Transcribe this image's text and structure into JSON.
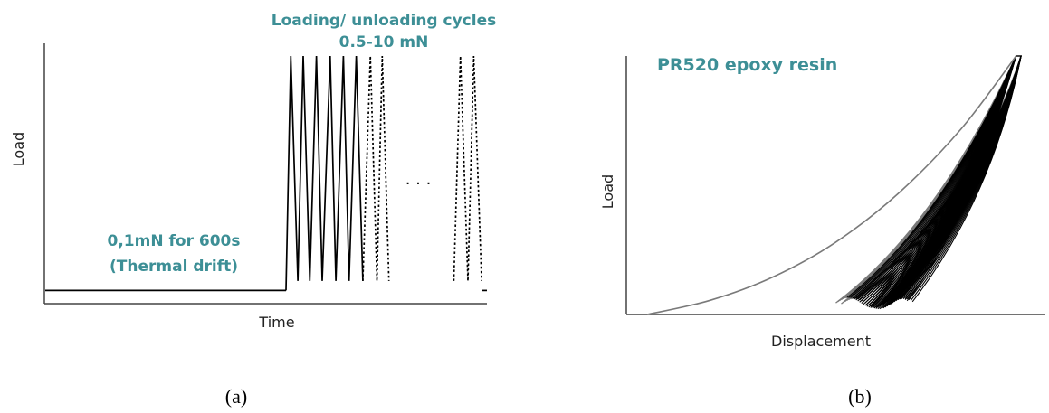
{
  "colors": {
    "annotation": "#3d8f96",
    "curve": "#000000",
    "curve_gray": "#7a7a7a",
    "axis": "#444444"
  },
  "chart_data": [
    {
      "type": "line",
      "panel": "(a)",
      "xlabel": "Time",
      "ylabel": "Load",
      "annotations": {
        "cycles_title": "Loading/ unloading cycles",
        "cycles_range": "0.5-10 mN",
        "hold_value": "0,1mN for 600s",
        "hold_note": "(Thermal drift)",
        "ellipsis": ". . ."
      },
      "xlim": [
        0,
        100
      ],
      "ylim": [
        0,
        10
      ],
      "series": [
        {
          "style": "solid",
          "x": [
            0,
            54.5
          ],
          "y": [
            0.1,
            0.1
          ]
        },
        {
          "style": "solid",
          "x": [
            54.5,
            55.6,
            57.2,
            58.4,
            59.9,
            61.4,
            62.7,
            64.5,
            65.8,
            67.5,
            68.8,
            70.4,
            71.9
          ],
          "y": [
            0.1,
            10,
            0.5,
            10,
            0.5,
            10,
            0.5,
            10,
            0.5,
            10,
            0.5,
            10,
            0.5
          ]
        },
        {
          "style": "dotted",
          "x": [
            71.9,
            73.6,
            75.1,
            76.3,
            77.8
          ],
          "y": [
            0.5,
            10,
            0.5,
            10,
            0.5
          ]
        },
        {
          "style": "dotted",
          "x": [
            92.5,
            94.0,
            95.7,
            97.0,
            98.8
          ],
          "y": [
            0.5,
            10,
            0.5,
            10,
            0.5
          ]
        },
        {
          "style": "solid",
          "x": [
            98.8,
            100
          ],
          "y": [
            0.1,
            0.1
          ]
        }
      ]
    },
    {
      "type": "line",
      "panel": "(b)",
      "title": "PR520 epoxy resin",
      "xlabel": "Displacement",
      "ylabel": "Load",
      "xlim": [
        0,
        100
      ],
      "ylim": [
        0,
        100
      ],
      "loading_curve": {
        "x": [
          5,
          20,
          35,
          50,
          65,
          80,
          93
        ],
        "y": [
          0,
          5.5,
          14.5,
          28,
          47,
          72,
          100
        ]
      },
      "cycles": {
        "count": 40,
        "peak": [
          93,
          100
        ],
        "unload_min_x": [
          50,
          67
        ],
        "unload_min_y": [
          3,
          7
        ]
      }
    }
  ],
  "captions": {
    "a": "(a)",
    "b": "(b)"
  }
}
